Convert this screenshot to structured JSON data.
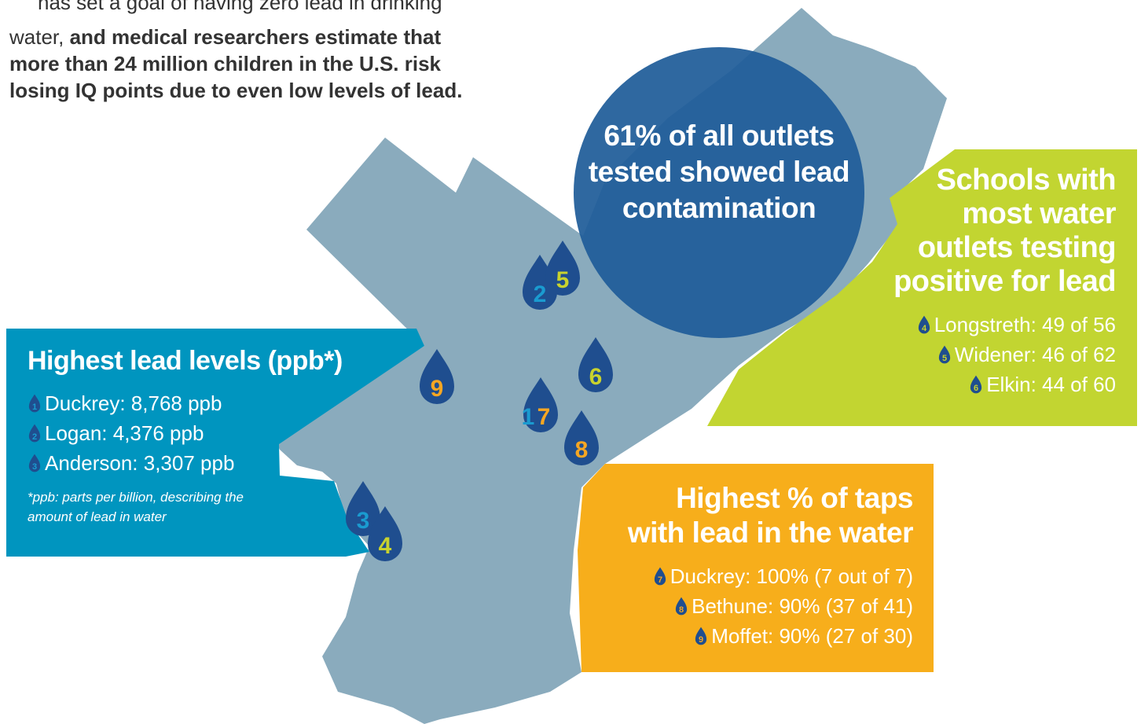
{
  "intro": {
    "line1": "has set a goal of having zero lead in drinking",
    "line2_plain": "water, ",
    "line2_bold": "and medical researchers estimate that",
    "line3": "more than 24 million children in the U.S. risk",
    "line4": "losing IQ points due to even low levels of lead."
  },
  "callout": {
    "lines": [
      "61% of all outlets",
      "tested showed lead",
      "contamination"
    ]
  },
  "panels": [
    {
      "title": [
        "Highest lead levels (ppb*)"
      ],
      "items": [
        {
          "marker": "1",
          "text": "Duckrey: 8,768 ppb"
        },
        {
          "marker": "2",
          "text": "Logan: 4,376 ppb"
        },
        {
          "marker": "3",
          "text": "Anderson: 3,307 ppb"
        }
      ],
      "note": [
        "*ppb: parts per billion, describing the",
        "amount of lead in water"
      ]
    },
    {
      "title": [
        "Schools with",
        "most water",
        "outlets testing",
        "positive for lead"
      ],
      "items": [
        {
          "marker": "4",
          "text": "Longstreth: 49 of 56"
        },
        {
          "marker": "5",
          "text": "Widener: 46 of 62"
        },
        {
          "marker": "6",
          "text": "Elkin: 44 of 60"
        }
      ]
    },
    {
      "title": [
        "Highest % of taps",
        "with lead in the water"
      ],
      "items": [
        {
          "marker": "7",
          "text": "Duckrey: 100% (7 out of 7)"
        },
        {
          "marker": "8",
          "text": "Bethune: 90% (37 of 41)"
        },
        {
          "marker": "9",
          "text": "Moffet: 90% (27 of 30)"
        }
      ]
    }
  ],
  "markers": [
    "2",
    "5",
    "9",
    "6",
    "1",
    "7",
    "8",
    "3",
    "4"
  ]
}
